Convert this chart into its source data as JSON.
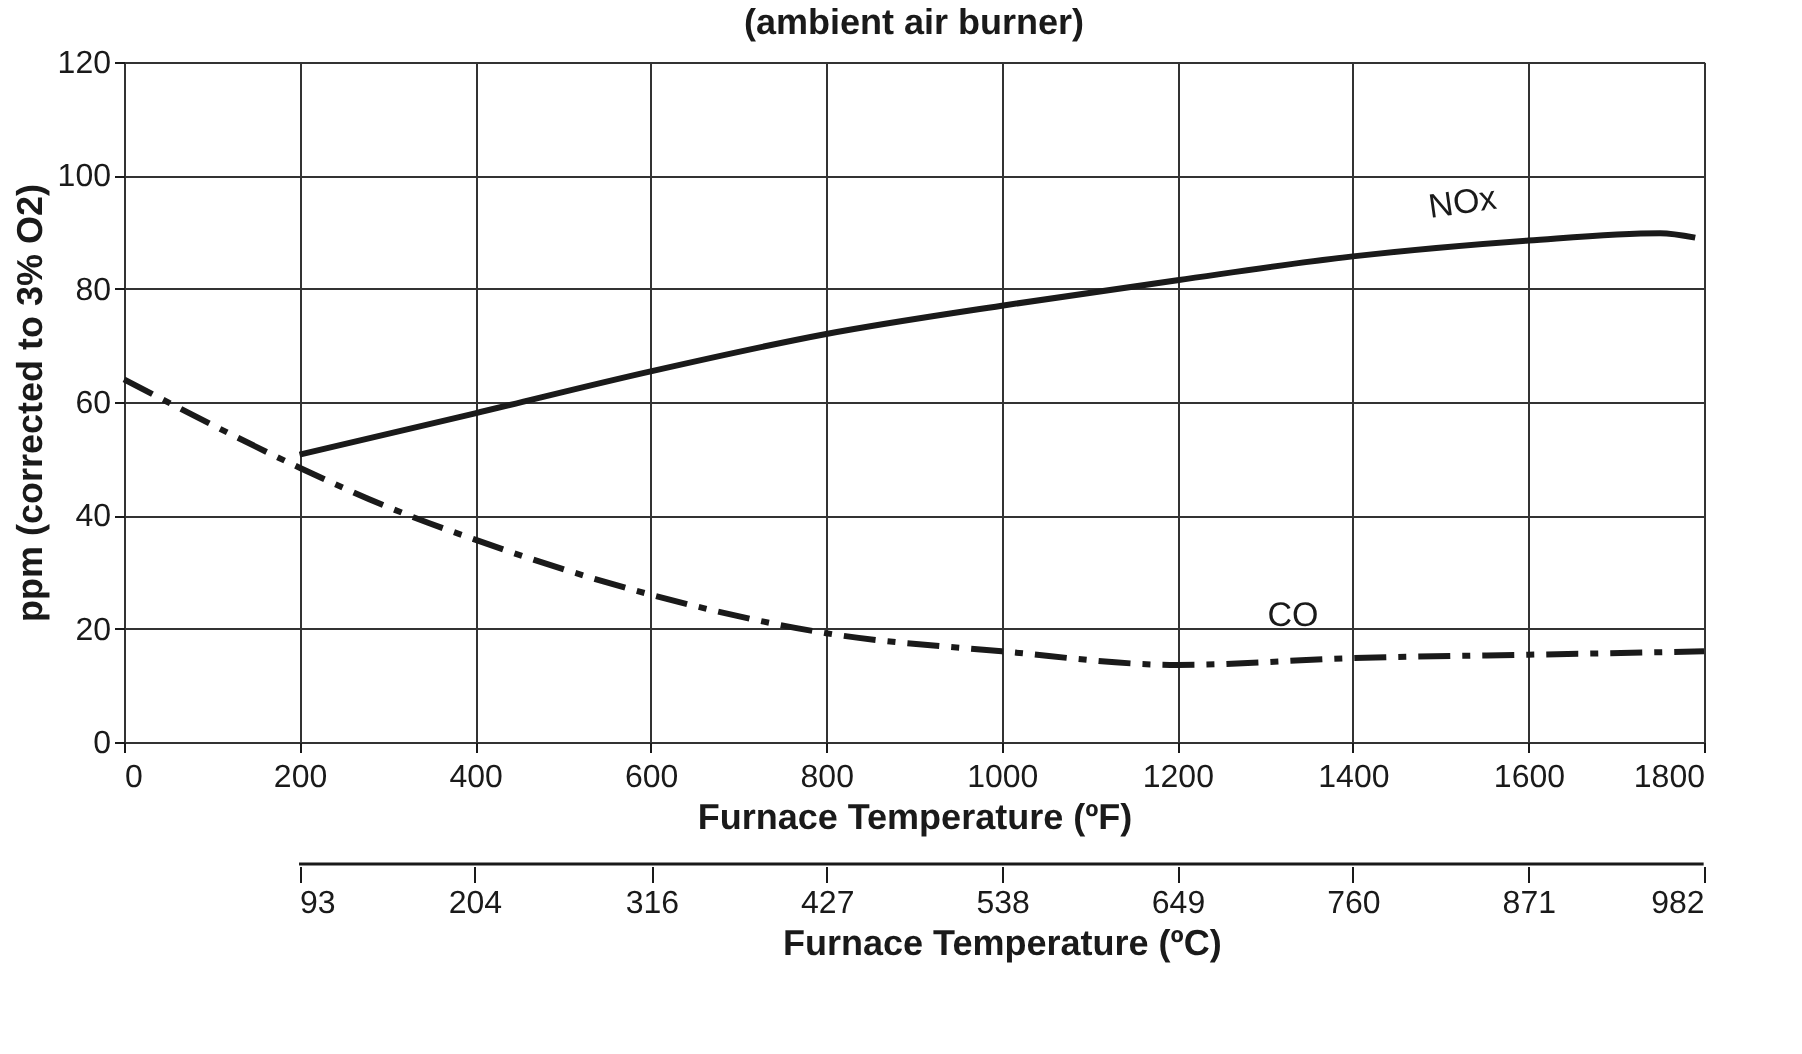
{
  "chart_data": {
    "type": "line",
    "title": "(ambient air burner)",
    "xlabel": "Furnace Temperature (ºF)",
    "ylabel": "ppm (corrected to 3% O2)",
    "x2label": "Furnace Temperature (ºC)",
    "series": [
      {
        "name": "NOx",
        "color": "#1a1a1a",
        "line_style": "solid",
        "x": [
          200,
          400,
          600,
          800,
          1000,
          1200,
          1400,
          1600,
          1750,
          1790
        ],
        "values": [
          50.7,
          58,
          65.4,
          72,
          77,
          81.5,
          85.7,
          88.5,
          89.8,
          89
        ]
      },
      {
        "name": "CO",
        "color": "#1a1a1a",
        "line_style": "dashed",
        "x": [
          0,
          100,
          200,
          300,
          400,
          600,
          800,
          1000,
          1200,
          1400,
          1600,
          1800
        ],
        "values": [
          64,
          56,
          48.4,
          41.5,
          35.7,
          26,
          19.2,
          16,
          13.6,
          14.8,
          15.4,
          16
        ]
      }
    ],
    "xlim": [
      0,
      1800
    ],
    "xticks": [
      0,
      200,
      400,
      600,
      800,
      1000,
      1200,
      1400,
      1600,
      1800
    ],
    "ylim": [
      0,
      120
    ],
    "yticks": [
      0,
      20,
      40,
      60,
      80,
      100,
      120
    ],
    "x2lim": [
      93,
      982
    ],
    "x2ticks": [
      93,
      204,
      316,
      427,
      538,
      649,
      760,
      871,
      982
    ],
    "grid": true,
    "marker": "none"
  }
}
